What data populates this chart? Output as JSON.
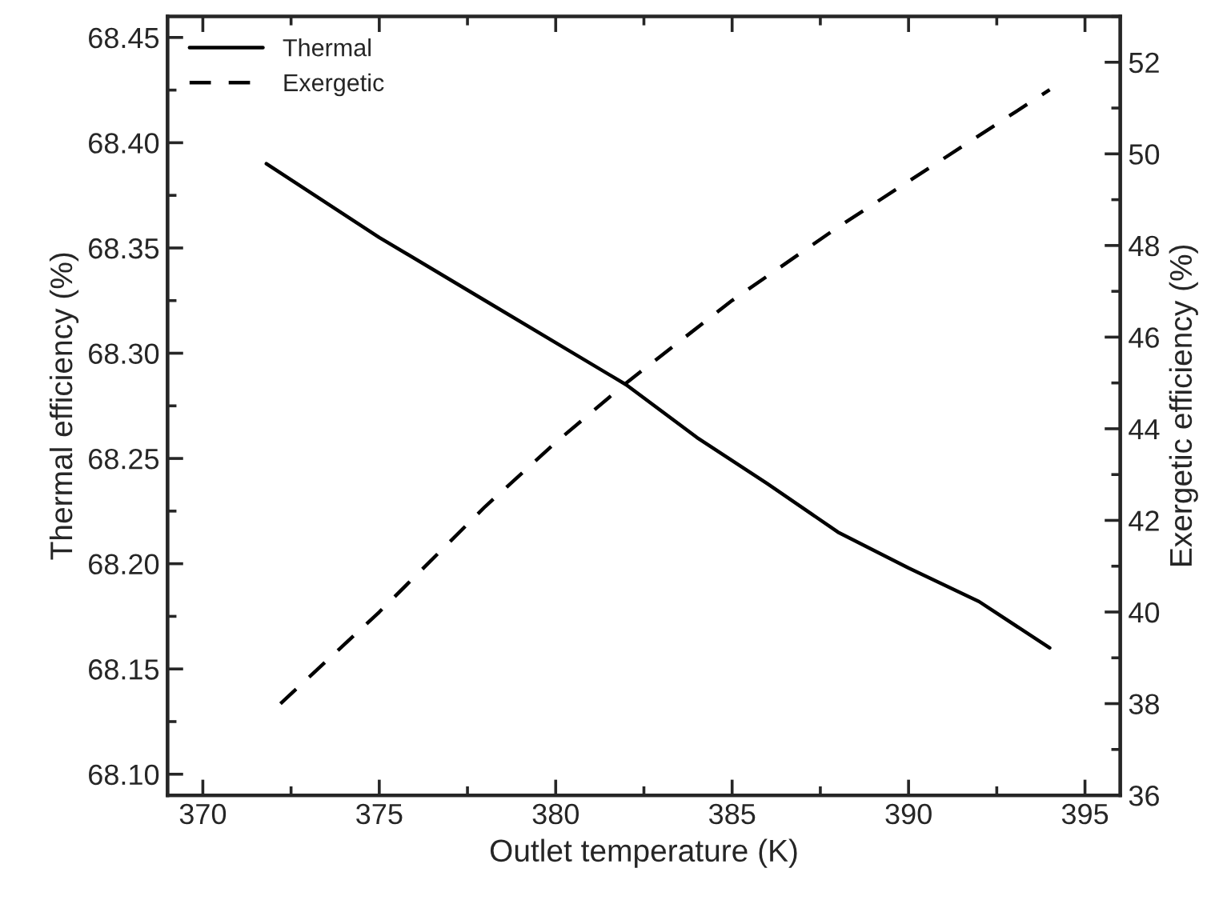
{
  "chart_data": {
    "type": "line",
    "xlabel": "Outlet temperature (K)",
    "ylabel": "Thermal efficiency (%)",
    "y2label": "Exergetic efficiency (%)",
    "xlim": [
      369,
      396
    ],
    "xticks": [
      370,
      375,
      380,
      385,
      390,
      395
    ],
    "ylim": [
      68.09,
      68.46
    ],
    "yticks": [
      {
        "value": 68.1,
        "label": "68.10"
      },
      68.15,
      {
        "value": 68.2,
        "label": "68.20"
      },
      68.25,
      {
        "value": 68.3,
        "label": "68.30"
      },
      68.35,
      {
        "value": 68.4,
        "label": "68.40"
      },
      68.45
    ],
    "y2lim": [
      36,
      53
    ],
    "y2ticks": [
      36,
      38,
      40,
      42,
      44,
      46,
      48,
      50,
      52
    ],
    "legend": "top left",
    "grid": false,
    "series": [
      {
        "name": "Thermal",
        "color": "#000000",
        "line_style": "solid",
        "x": [
          371.8,
          375,
          378,
          380,
          382,
          384,
          386,
          388,
          390,
          392,
          394
        ],
        "values": [
          68.39,
          68.355,
          68.325,
          68.305,
          68.285,
          68.26,
          68.238,
          68.215,
          68.198,
          68.182,
          68.16
        ]
      },
      {
        "name": "Exergetic",
        "color": "#000000",
        "line_style": "dashed",
        "axis": "y2",
        "x": [
          372.2,
          375,
          378,
          380,
          382,
          385,
          388,
          390,
          392,
          394
        ],
        "values": [
          38.0,
          40.0,
          42.3,
          43.7,
          45.0,
          46.8,
          48.4,
          49.4,
          50.4,
          51.4
        ]
      }
    ]
  }
}
